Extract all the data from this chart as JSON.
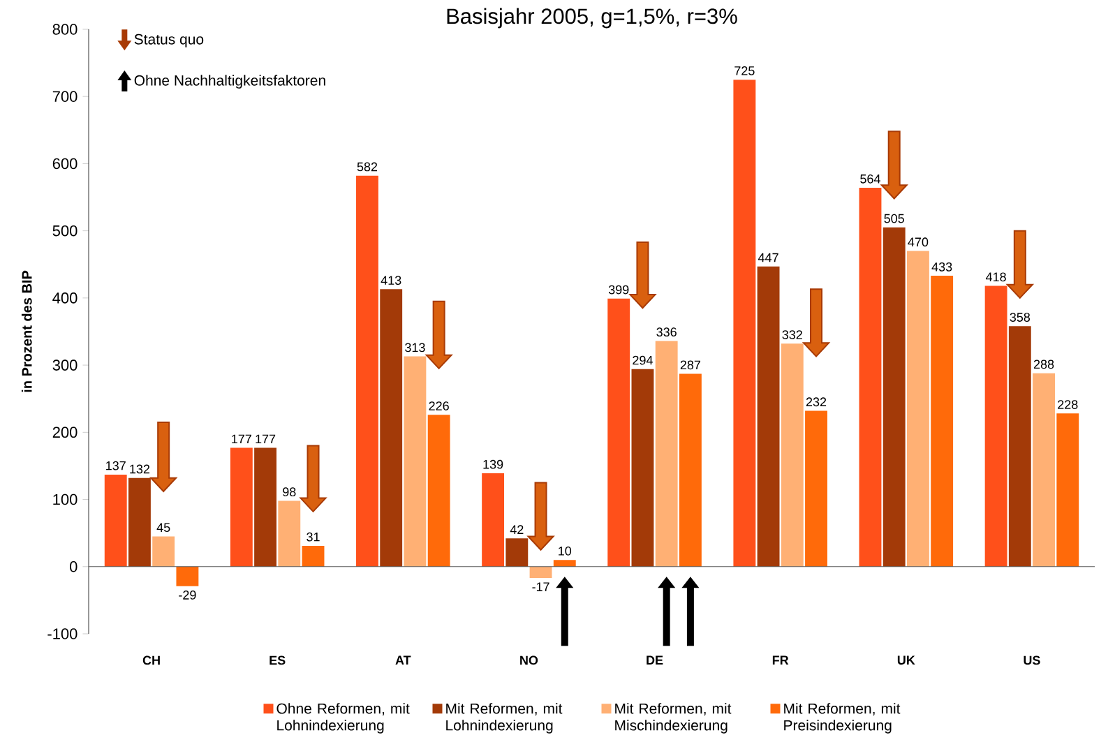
{
  "chart_data": {
    "type": "bar",
    "title": "Basisjahr 2005, g=1,5%, r=3%",
    "ylabel": "in Prozent des BIP",
    "categories": [
      "CH",
      "ES",
      "AT",
      "NO",
      "DE",
      "FR",
      "UK",
      "US"
    ],
    "series": [
      {
        "name": "Ohne Reformen, mit Lohnindexierung",
        "color": "#ff501a",
        "values": [
          137,
          177,
          582,
          139,
          399,
          725,
          564,
          418
        ]
      },
      {
        "name": "Mit Reformen, mit Lohnindexierung",
        "color": "#a33a08",
        "values": [
          132,
          177,
          413,
          42,
          294,
          447,
          505,
          358
        ]
      },
      {
        "name": "Mit Reformen, mit Mischindexierung",
        "color": "#ffb074",
        "values": [
          45,
          98,
          313,
          -17,
          336,
          332,
          470,
          288
        ]
      },
      {
        "name": "Mit Reformen, mit Preisindexierung",
        "color": "#ff6a0a",
        "values": [
          -29,
          31,
          226,
          10,
          287,
          232,
          433,
          228
        ]
      }
    ],
    "ylim": [
      -100,
      800
    ],
    "yticks": [
      -100,
      0,
      100,
      200,
      300,
      400,
      500,
      600,
      700,
      800
    ],
    "data_labels": true,
    "legend": "bottom",
    "annotations": [
      "Status quo",
      "Ohne Nachhaltigkeitsfaktoren"
    ]
  }
}
